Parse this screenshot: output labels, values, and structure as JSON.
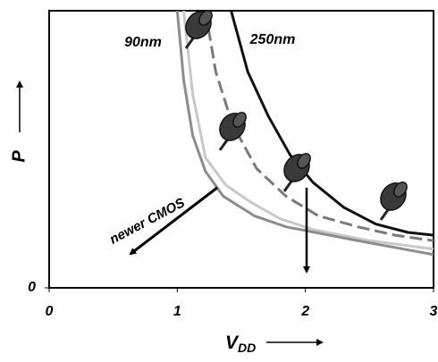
{
  "chart_data": {
    "type": "line",
    "xlabel": "V",
    "xlabel_sub": "DD",
    "ylabel": "P",
    "xlim": [
      0,
      3
    ],
    "xticks": [
      0,
      1,
      2,
      3
    ],
    "ylim": [
      0,
      1
    ],
    "yticks": [
      0
    ],
    "annotation": "newer CMOS",
    "series": [
      {
        "name": "250nm",
        "color": "#111111",
        "dash": false,
        "x": [
          1.42,
          1.55,
          1.71,
          1.88,
          2.06,
          2.3,
          2.55,
          2.8,
          3
        ],
        "values": [
          1,
          0.78,
          0.62,
          0.48,
          0.38,
          0.29,
          0.23,
          0.2,
          0.19
        ]
      },
      {
        "color": "#7a7a7a",
        "dash": true,
        "x": [
          1.22,
          1.3,
          1.43,
          1.62,
          1.85,
          2.1,
          2.41,
          2.7,
          3
        ],
        "values": [
          1,
          0.78,
          0.59,
          0.43,
          0.33,
          0.26,
          0.22,
          0.19,
          0.17
        ]
      },
      {
        "color": "#c8c8c8",
        "dash": false,
        "x": [
          1.05,
          1.12,
          1.22,
          1.38,
          1.57,
          1.8,
          2.06,
          2.5,
          3
        ],
        "values": [
          1,
          0.7,
          0.47,
          0.37,
          0.31,
          0.25,
          0.21,
          0.17,
          0.14
        ]
      },
      {
        "name": "90nm",
        "color": "#8c8c8c",
        "dash": false,
        "x": [
          1.0,
          1.05,
          1.12,
          1.22,
          1.36,
          1.6,
          1.85,
          2.41,
          3
        ],
        "values": [
          1,
          0.75,
          0.55,
          0.42,
          0.33,
          0.26,
          0.22,
          0.17,
          0.12
        ]
      }
    ]
  }
}
